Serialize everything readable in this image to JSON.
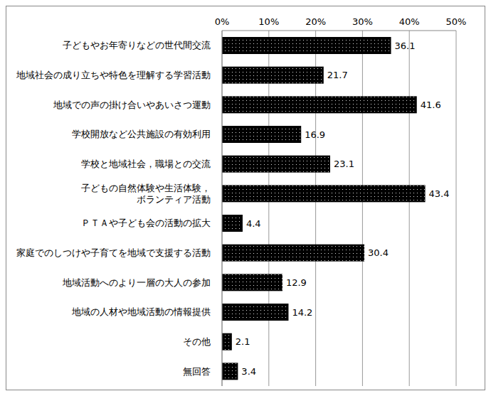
{
  "chart_data": {
    "type": "bar",
    "orientation": "horizontal",
    "categories": [
      "子どもやお年寄りなどの世代間交流",
      "地域社会の成り立ちや特色を理解する学習活動",
      "地域での声の掛け合いやあいさつ運動",
      "学校開放など公共施設の有効利用",
      "学校と地域社会，職場との交流",
      "子どもの自然体験や生活体験，\nボランティア活動",
      "ＰＴＡや子ども会の活動の拡大",
      "家庭でのしつけや子育てを地域で支援する活動",
      "地域活動へのより一層の大人の参加",
      "地域の人材や地域活動の情報提供",
      "その他",
      "無回答"
    ],
    "values": [
      36.1,
      21.7,
      41.6,
      16.9,
      23.1,
      43.4,
      4.4,
      30.4,
      12.9,
      14.2,
      2.1,
      3.4
    ],
    "color": "#000000",
    "xlim": [
      0,
      50
    ],
    "xticks": [
      {
        "value": 0,
        "label": "0%"
      },
      {
        "value": 10,
        "label": "10%"
      },
      {
        "value": 20,
        "label": "20%"
      },
      {
        "value": 30,
        "label": "30%"
      },
      {
        "value": 40,
        "label": "40%"
      },
      {
        "value": 50,
        "label": "50%"
      }
    ],
    "grid": true,
    "data_labels": true
  }
}
